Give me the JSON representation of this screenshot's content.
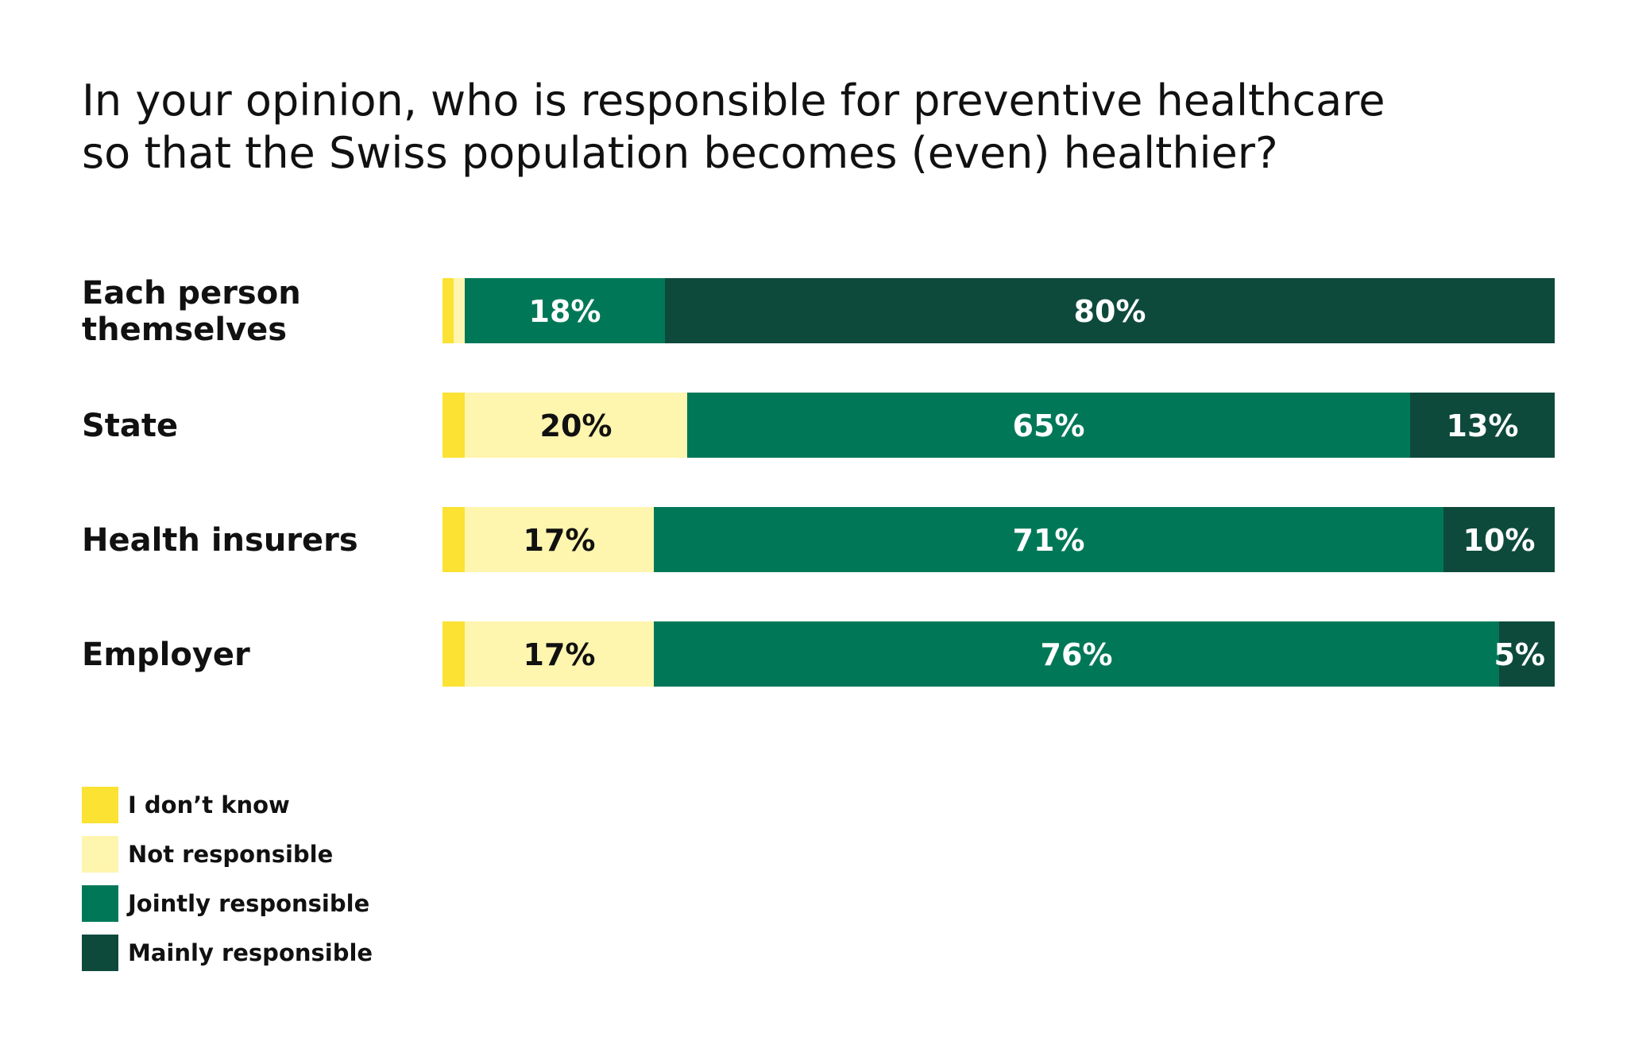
{
  "chart_data": {
    "type": "bar",
    "orientation": "horizontal",
    "stacked": true,
    "title_lines": [
      "In your opinion, who is responsible for preventive healthcare",
      "so that the Swiss population becomes (even) healthier?"
    ],
    "categories": [
      {
        "lines": [
          "Each person",
          "themselves"
        ]
      },
      {
        "lines": [
          "State"
        ]
      },
      {
        "lines": [
          "Health insurers"
        ]
      },
      {
        "lines": [
          "Employer"
        ]
      }
    ],
    "series": [
      {
        "name": "I don’t know",
        "color": "#FBE233",
        "text_color": "#111111",
        "values": [
          1,
          2,
          2,
          2
        ],
        "labels": [
          "",
          "",
          "",
          ""
        ]
      },
      {
        "name": "Not responsible",
        "color": "#FEF5AE",
        "text_color": "#111111",
        "values": [
          1,
          20,
          17,
          17
        ],
        "labels": [
          "",
          "20%",
          "17%",
          "17%"
        ]
      },
      {
        "name": "Jointly responsible",
        "color": "#007858",
        "text_color": "#ffffff",
        "values": [
          18,
          65,
          71,
          76
        ],
        "labels": [
          "18%",
          "65%",
          "71%",
          "76%"
        ]
      },
      {
        "name": "Mainly responsible",
        "color": "#0E4A3C",
        "text_color": "#ffffff",
        "values": [
          80,
          13,
          10,
          5
        ],
        "labels": [
          "80%",
          "13%",
          "10%",
          "5%"
        ]
      }
    ],
    "xlim": [
      0,
      100
    ],
    "grid": false,
    "legend_position": "bottom-left"
  }
}
